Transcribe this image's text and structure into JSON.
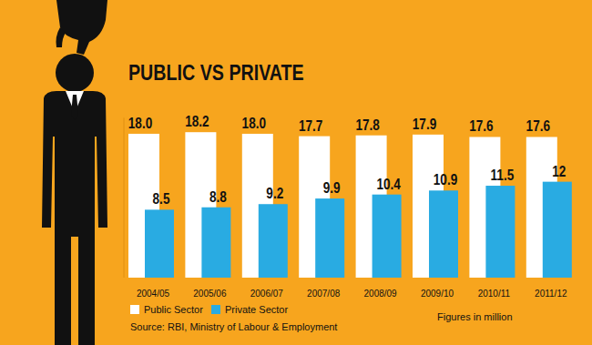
{
  "chart_data": {
    "type": "bar",
    "title": "PUBLIC VS PRIVATE",
    "categories": [
      "2004/05",
      "2005/06",
      "2006/07",
      "2007/08",
      "2008/09",
      "2009/10",
      "2010/11",
      "2011/12"
    ],
    "series": [
      {
        "name": "Public Sector",
        "color": "#ffffff",
        "values": [
          18.0,
          18.2,
          18.0,
          17.7,
          17.8,
          17.9,
          17.6,
          17.6
        ],
        "value_labels": [
          "18.0",
          "18.2",
          "18.0",
          "17.7",
          "17.8",
          "17.9",
          "17.6",
          "17.6"
        ]
      },
      {
        "name": "Private Sector",
        "color": "#29abe2",
        "values": [
          8.5,
          8.8,
          9.2,
          9.9,
          10.4,
          10.9,
          11.5,
          12
        ],
        "value_labels": [
          "8.5",
          "8.8",
          "9.2",
          "9.9",
          "10.4",
          "10.9",
          "11.5",
          "12"
        ]
      }
    ],
    "ylim": [
      0,
      20
    ],
    "data_labels": true,
    "tick_labels": "x",
    "legend": "bottom-left",
    "source": "Source: RBI, Ministry of Labour & Employment",
    "note": "Figures in million"
  }
}
